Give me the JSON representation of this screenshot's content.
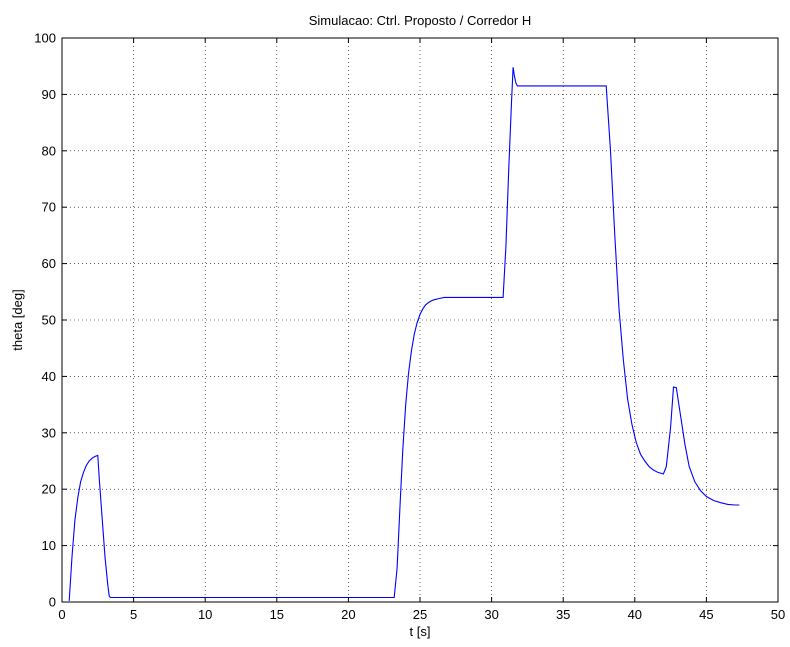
{
  "chart_data": {
    "type": "line",
    "title": "Simulacao: Ctrl. Proposto / Corredor H",
    "xlabel": "t [s]",
    "ylabel": "theta [deg]",
    "xlim": [
      0,
      50
    ],
    "ylim": [
      0,
      100
    ],
    "xticks": [
      0,
      5,
      10,
      15,
      20,
      25,
      30,
      35,
      40,
      45,
      50
    ],
    "yticks": [
      0,
      10,
      20,
      30,
      40,
      50,
      60,
      70,
      80,
      90,
      100
    ],
    "grid": true,
    "line_color": "#0000ff",
    "series": [
      {
        "x": [
          0.5,
          0.7,
          0.9,
          1.1,
          1.3,
          1.5,
          1.7,
          1.9,
          2.1,
          2.3,
          2.5,
          2.6,
          2.8,
          3.0,
          3.2,
          3.3,
          3.4,
          5,
          10,
          15,
          20,
          23.2,
          23.4,
          23.6,
          23.8,
          24.0,
          24.2,
          24.4,
          24.6,
          24.8,
          25.0,
          25.2,
          25.4,
          25.6,
          25.8,
          26.0,
          26.3,
          26.7,
          27.0,
          28,
          29,
          30,
          30.8,
          31.0,
          31.2,
          31.4,
          31.5,
          31.6,
          31.7,
          31.8,
          32,
          33,
          34,
          35,
          36,
          37,
          38.0,
          38.3,
          38.6,
          38.9,
          39.2,
          39.5,
          39.8,
          40.1,
          40.4,
          40.7,
          41.0,
          41.3,
          41.6,
          42.0,
          42.2,
          42.5,
          42.7,
          42.9,
          43.2,
          43.5,
          43.8,
          44.2,
          44.6,
          45.0,
          45.5,
          46.0,
          46.5,
          47.0,
          47.3
        ],
        "y": [
          0.2,
          8,
          14.5,
          18.5,
          21.3,
          23,
          24.2,
          25,
          25.5,
          25.8,
          26,
          22,
          15,
          8,
          3,
          1,
          0.8,
          0.8,
          0.8,
          0.8,
          0.8,
          0.8,
          6,
          17,
          27,
          35,
          40.5,
          44.5,
          47.5,
          49.5,
          51,
          52,
          52.7,
          53.1,
          53.4,
          53.6,
          53.8,
          54,
          54,
          54,
          54,
          54,
          54,
          63,
          77,
          89,
          94.8,
          93.2,
          92,
          91.5,
          91.5,
          91.5,
          91.5,
          91.5,
          91.5,
          91.5,
          91.5,
          80,
          65,
          52,
          43,
          36,
          31.5,
          28.3,
          26.2,
          25,
          24,
          23.4,
          23,
          22.7,
          24,
          31,
          38.1,
          38,
          33,
          28,
          24,
          21.3,
          19.7,
          18.7,
          18,
          17.6,
          17.3,
          17.2,
          17.2
        ]
      }
    ]
  }
}
